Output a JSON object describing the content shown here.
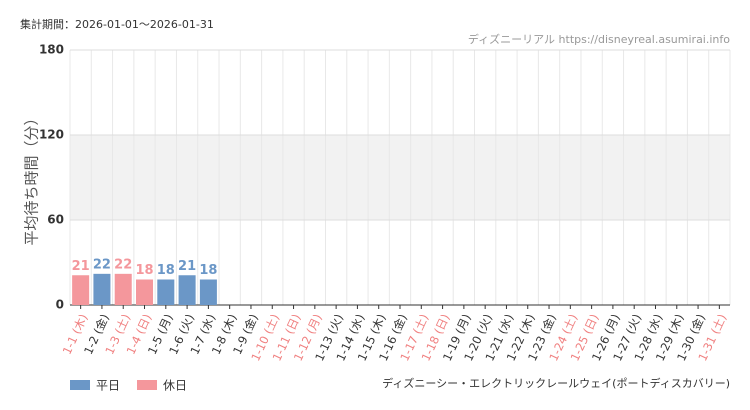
{
  "chart_data": {
    "type": "bar",
    "subtitle": "集計期間：2026-01-01～2026-01-31",
    "source": "ディズニーリアル https://disneyreal.asumirai.info",
    "caption": "ディズニーシー・エレクトリックレールウェイ(ポートディスカバリー)",
    "y_label": "平均待ち時間（分）",
    "categories": [
      "1-1 (木)",
      "1-2 (金)",
      "1-3 (土)",
      "1-4 (日)",
      "1-5 (月)",
      "1-6 (火)",
      "1-7 (水)",
      "1-8 (木)",
      "1-9 (金)",
      "1-10 (土)",
      "1-11 (日)",
      "1-12 (月)",
      "1-13 (火)",
      "1-14 (水)",
      "1-15 (木)",
      "1-16 (金)",
      "1-17 (土)",
      "1-18 (日)",
      "1-19 (月)",
      "1-20 (火)",
      "1-21 (水)",
      "1-22 (木)",
      "1-23 (金)",
      "1-24 (土)",
      "1-25 (日)",
      "1-26 (月)",
      "1-27 (火)",
      "1-28 (水)",
      "1-29 (木)",
      "1-30 (金)",
      "1-31 (土)"
    ],
    "category_colors": [
      "#f08080",
      "#333333",
      "#f08080",
      "#f08080",
      "#333333",
      "#333333",
      "#333333",
      "#333333",
      "#333333",
      "#f08080",
      "#f08080",
      "#f08080",
      "#333333",
      "#333333",
      "#333333",
      "#333333",
      "#f08080",
      "#f08080",
      "#333333",
      "#333333",
      "#333333",
      "#333333",
      "#333333",
      "#f08080",
      "#f08080",
      "#333333",
      "#333333",
      "#333333",
      "#333333",
      "#333333",
      "#f08080"
    ],
    "series": [
      {
        "name": "平日",
        "color": "#6b97c7",
        "values": [
          null,
          22,
          null,
          null,
          18,
          21,
          18,
          null,
          null,
          null,
          null,
          null,
          null,
          null,
          null,
          null,
          null,
          null,
          null,
          null,
          null,
          null,
          null,
          null,
          null,
          null,
          null,
          null,
          null,
          null,
          null
        ]
      },
      {
        "name": "休日",
        "color": "#f4979c",
        "values": [
          21,
          null,
          22,
          18,
          null,
          null,
          null,
          null,
          null,
          null,
          null,
          null,
          null,
          null,
          null,
          null,
          null,
          null,
          null,
          null,
          null,
          null,
          null,
          null,
          null,
          null,
          null,
          null,
          null,
          null,
          null
        ]
      }
    ],
    "ylim": [
      0,
      180
    ],
    "yticks": [
      0,
      60,
      120,
      180
    ],
    "grid": true,
    "alternate_bands": true
  }
}
